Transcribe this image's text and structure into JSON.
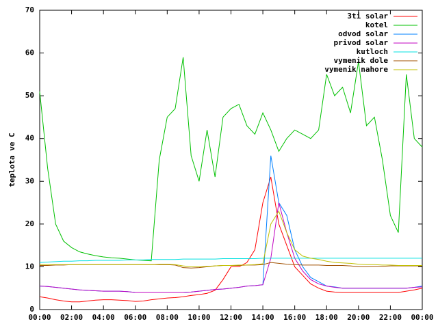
{
  "chart_data": {
    "type": "line",
    "y_label": "teplota ve C",
    "x": [
      0,
      0.5,
      1,
      1.5,
      2,
      2.5,
      3,
      3.5,
      4,
      4.5,
      5,
      5.5,
      6,
      6.5,
      7,
      7.5,
      8,
      8.5,
      9,
      9.5,
      10,
      10.5,
      11,
      11.5,
      12,
      12.5,
      13,
      13.5,
      14,
      14.5,
      15,
      15.5,
      16,
      16.5,
      17,
      17.5,
      18,
      18.5,
      19,
      19.5,
      20,
      20.5,
      21,
      21.5,
      22,
      22.5,
      23,
      23.5,
      24
    ],
    "xlim": [
      0,
      24
    ],
    "xticks": [
      {
        "value": 0,
        "label": "00:00"
      },
      {
        "value": 2,
        "label": "02:00"
      },
      {
        "value": 4,
        "label": "04:00"
      },
      {
        "value": 6,
        "label": "06:00"
      },
      {
        "value": 8,
        "label": "08:00"
      },
      {
        "value": 10,
        "label": "10:00"
      },
      {
        "value": 12,
        "label": "12:00"
      },
      {
        "value": 14,
        "label": "14:00"
      },
      {
        "value": 16,
        "label": "16:00"
      },
      {
        "value": 18,
        "label": "18:00"
      },
      {
        "value": 20,
        "label": "20:00"
      },
      {
        "value": 22,
        "label": "22:00"
      },
      {
        "value": 24,
        "label": "00:00"
      }
    ],
    "ylim": [
      0,
      70
    ],
    "yticks": [
      0,
      10,
      20,
      30,
      40,
      50,
      60,
      70
    ],
    "grid": false,
    "legend": "top-right",
    "series": [
      {
        "name": "3ti solar",
        "color": "#ff0000",
        "values": [
          3,
          2.7,
          2.3,
          2,
          1.8,
          1.8,
          2,
          2.2,
          2.3,
          2.3,
          2.2,
          2.1,
          1.9,
          2,
          2.3,
          2.5,
          2.7,
          2.8,
          3,
          3.3,
          3.5,
          3.8,
          4.5,
          7,
          10,
          10,
          11,
          14,
          25,
          31,
          20,
          15,
          10,
          8,
          6,
          5,
          4.3,
          4.1,
          4,
          4,
          4,
          4,
          4,
          4,
          4,
          4,
          4.3,
          4.6,
          5
        ]
      },
      {
        "name": "kotel",
        "color": "#00c000",
        "values": [
          51,
          33,
          20,
          16,
          14.5,
          13.5,
          13,
          12.6,
          12.3,
          12.1,
          12,
          11.8,
          11.6,
          11.5,
          11.4,
          35,
          45,
          47,
          59,
          36,
          30,
          42,
          31,
          45,
          47,
          48,
          43,
          41,
          46,
          42,
          37,
          40,
          42,
          41,
          40,
          42,
          55,
          50,
          52,
          46,
          58,
          43,
          45,
          35,
          22,
          18,
          55,
          40,
          38
        ]
      },
      {
        "name": "odvod solar",
        "color": "#0080ff",
        "values": [
          5.5,
          5.4,
          5.2,
          5,
          4.8,
          4.6,
          4.5,
          4.4,
          4.3,
          4.3,
          4.3,
          4.2,
          4,
          4,
          4,
          4,
          4,
          4,
          4,
          4.1,
          4.3,
          4.5,
          4.7,
          4.8,
          5,
          5.2,
          5.5,
          5.6,
          5.8,
          36,
          25,
          22,
          14,
          10,
          7.5,
          6.5,
          5.5,
          5.3,
          5,
          5,
          5,
          5,
          5,
          5,
          5,
          5,
          5,
          5.2,
          5.5
        ]
      },
      {
        "name": "privod solar",
        "color": "#c000c0",
        "values": [
          5.5,
          5.4,
          5.2,
          5,
          4.8,
          4.6,
          4.5,
          4.4,
          4.3,
          4.3,
          4.3,
          4.2,
          4,
          4,
          4,
          4,
          4,
          4,
          4,
          4.1,
          4.3,
          4.5,
          4.7,
          4.8,
          5,
          5.2,
          5.5,
          5.6,
          5.8,
          12,
          25,
          18,
          12,
          9,
          7,
          6,
          5.5,
          5.2,
          5,
          5,
          5,
          5,
          5,
          5,
          5,
          5,
          5,
          5.2,
          5.3
        ]
      },
      {
        "name": "kutloch",
        "color": "#00e0e0",
        "values": [
          11,
          11.1,
          11.2,
          11.3,
          11.3,
          11.4,
          11.4,
          11.5,
          11.5,
          11.5,
          11.5,
          11.6,
          11.6,
          11.6,
          11.7,
          11.7,
          11.7,
          11.7,
          11.8,
          11.8,
          11.8,
          11.8,
          11.8,
          11.9,
          11.9,
          11.9,
          11.9,
          11.9,
          12,
          12,
          12,
          12,
          12,
          12,
          12,
          12,
          12,
          12,
          12,
          12,
          12,
          12,
          12,
          12,
          12,
          12,
          12,
          12,
          12
        ]
      },
      {
        "name": "vymenik dole",
        "color": "#a05000",
        "values": [
          10.3,
          10.3,
          10.4,
          10.4,
          10.5,
          10.5,
          10.5,
          10.5,
          10.5,
          10.5,
          10.5,
          10.5,
          10.5,
          10.5,
          10.5,
          10.5,
          10.5,
          10.4,
          9.8,
          9.7,
          9.8,
          10,
          10.2,
          10.3,
          10.3,
          10.3,
          10.4,
          10.4,
          10.5,
          11,
          10.8,
          10.6,
          10.5,
          10.4,
          10.4,
          10.4,
          10.3,
          10.3,
          10.3,
          10.2,
          10,
          10,
          10.1,
          10.1,
          10.2,
          10.2,
          10.2,
          10.2,
          10.2
        ]
      },
      {
        "name": "vymenik nahore",
        "color": "#c0c000",
        "values": [
          10.5,
          10.5,
          10.5,
          10.5,
          10.5,
          10.5,
          10.5,
          10.5,
          10.5,
          10.5,
          10.5,
          10.5,
          10.5,
          10.5,
          10.5,
          10.6,
          10.6,
          10.5,
          10.2,
          10,
          10,
          10.1,
          10.2,
          10.3,
          10.3,
          10.4,
          10.4,
          10.5,
          10.7,
          20,
          23,
          18,
          14,
          12.5,
          12,
          11.7,
          11.3,
          11,
          10.9,
          10.8,
          10.6,
          10.5,
          10.5,
          10.4,
          10.4,
          10.3,
          10.3,
          10.3,
          10.3
        ]
      }
    ]
  }
}
